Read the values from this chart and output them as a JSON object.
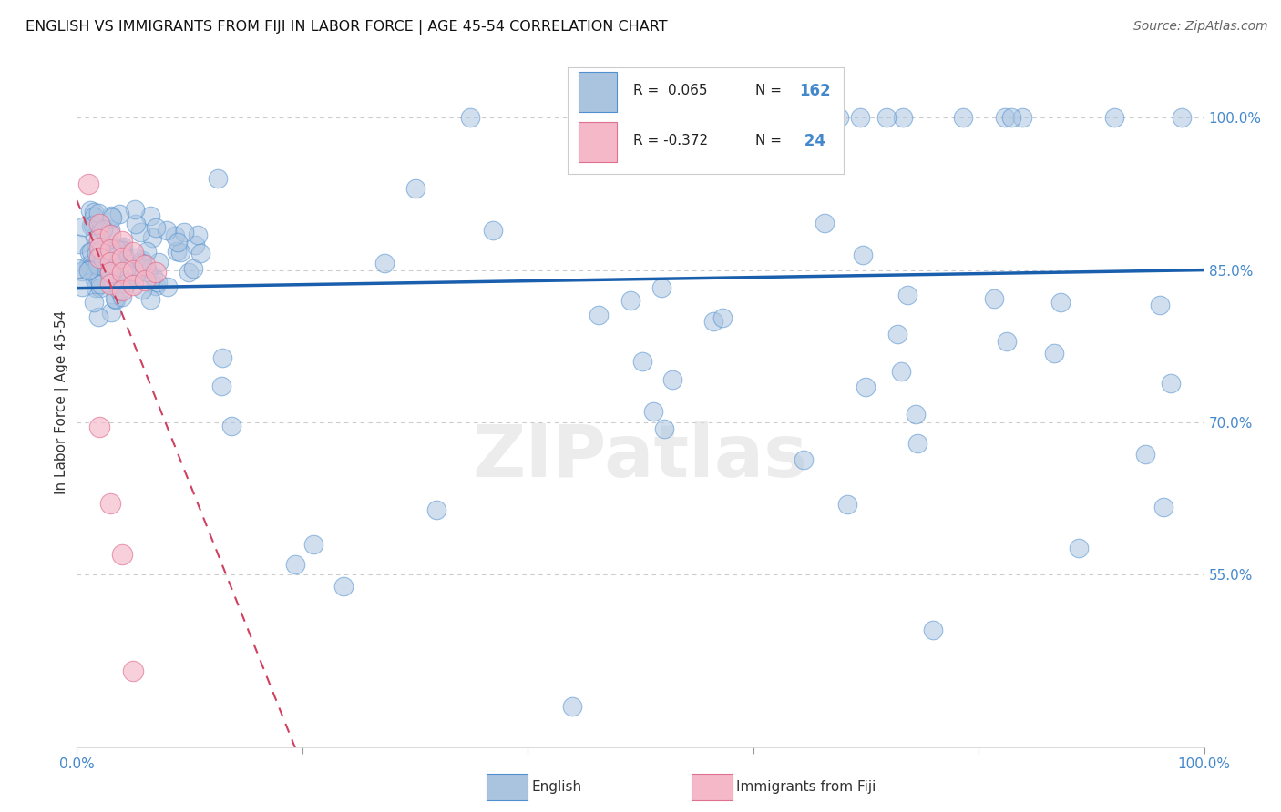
{
  "title": "ENGLISH VS IMMIGRANTS FROM FIJI IN LABOR FORCE | AGE 45-54 CORRELATION CHART",
  "source": "Source: ZipAtlas.com",
  "ylabel": "In Labor Force | Age 45-54",
  "xlim": [
    0.0,
    1.0
  ],
  "ylim": [
    0.38,
    1.06
  ],
  "blue_R": 0.065,
  "blue_N": 162,
  "pink_R": -0.372,
  "pink_N": 24,
  "blue_fill": "#aac4e0",
  "blue_edge": "#5090d0",
  "pink_fill": "#f4b8c8",
  "pink_edge": "#e07090",
  "blue_line_color": "#1a5fad",
  "pink_line_color": "#d04060",
  "legend_blue": "English",
  "legend_pink": "Immigrants from Fiji",
  "right_yticks": [
    1.0,
    0.85,
    0.7,
    0.55
  ],
  "right_ytick_labels": [
    "100.0%",
    "85.0%",
    "70.0%",
    "55.0%"
  ],
  "grid_color": "#cccccc",
  "watermark": "ZIPatlas",
  "blue_line_start_y": 0.832,
  "blue_line_end_y": 0.85,
  "pink_line_intercept_y": 0.836,
  "pink_slope_factor": -0.372
}
